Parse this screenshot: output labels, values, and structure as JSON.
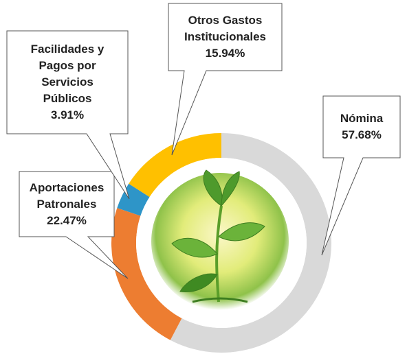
{
  "chart_data": {
    "type": "donut",
    "categories": [
      "Nómina",
      "Aportaciones Patronales",
      "Facilidades y Pagos por Servicios Públicos",
      "Otros Gastos Institucionales"
    ],
    "values": [
      57.68,
      22.47,
      3.91,
      15.94
    ],
    "value_labels": [
      "57.68%",
      "22.47%",
      "3.91%",
      "15.94%"
    ],
    "colors": [
      "#d9d9d9",
      "#ed7d31",
      "#2e95c8",
      "#ffc000"
    ]
  }
}
